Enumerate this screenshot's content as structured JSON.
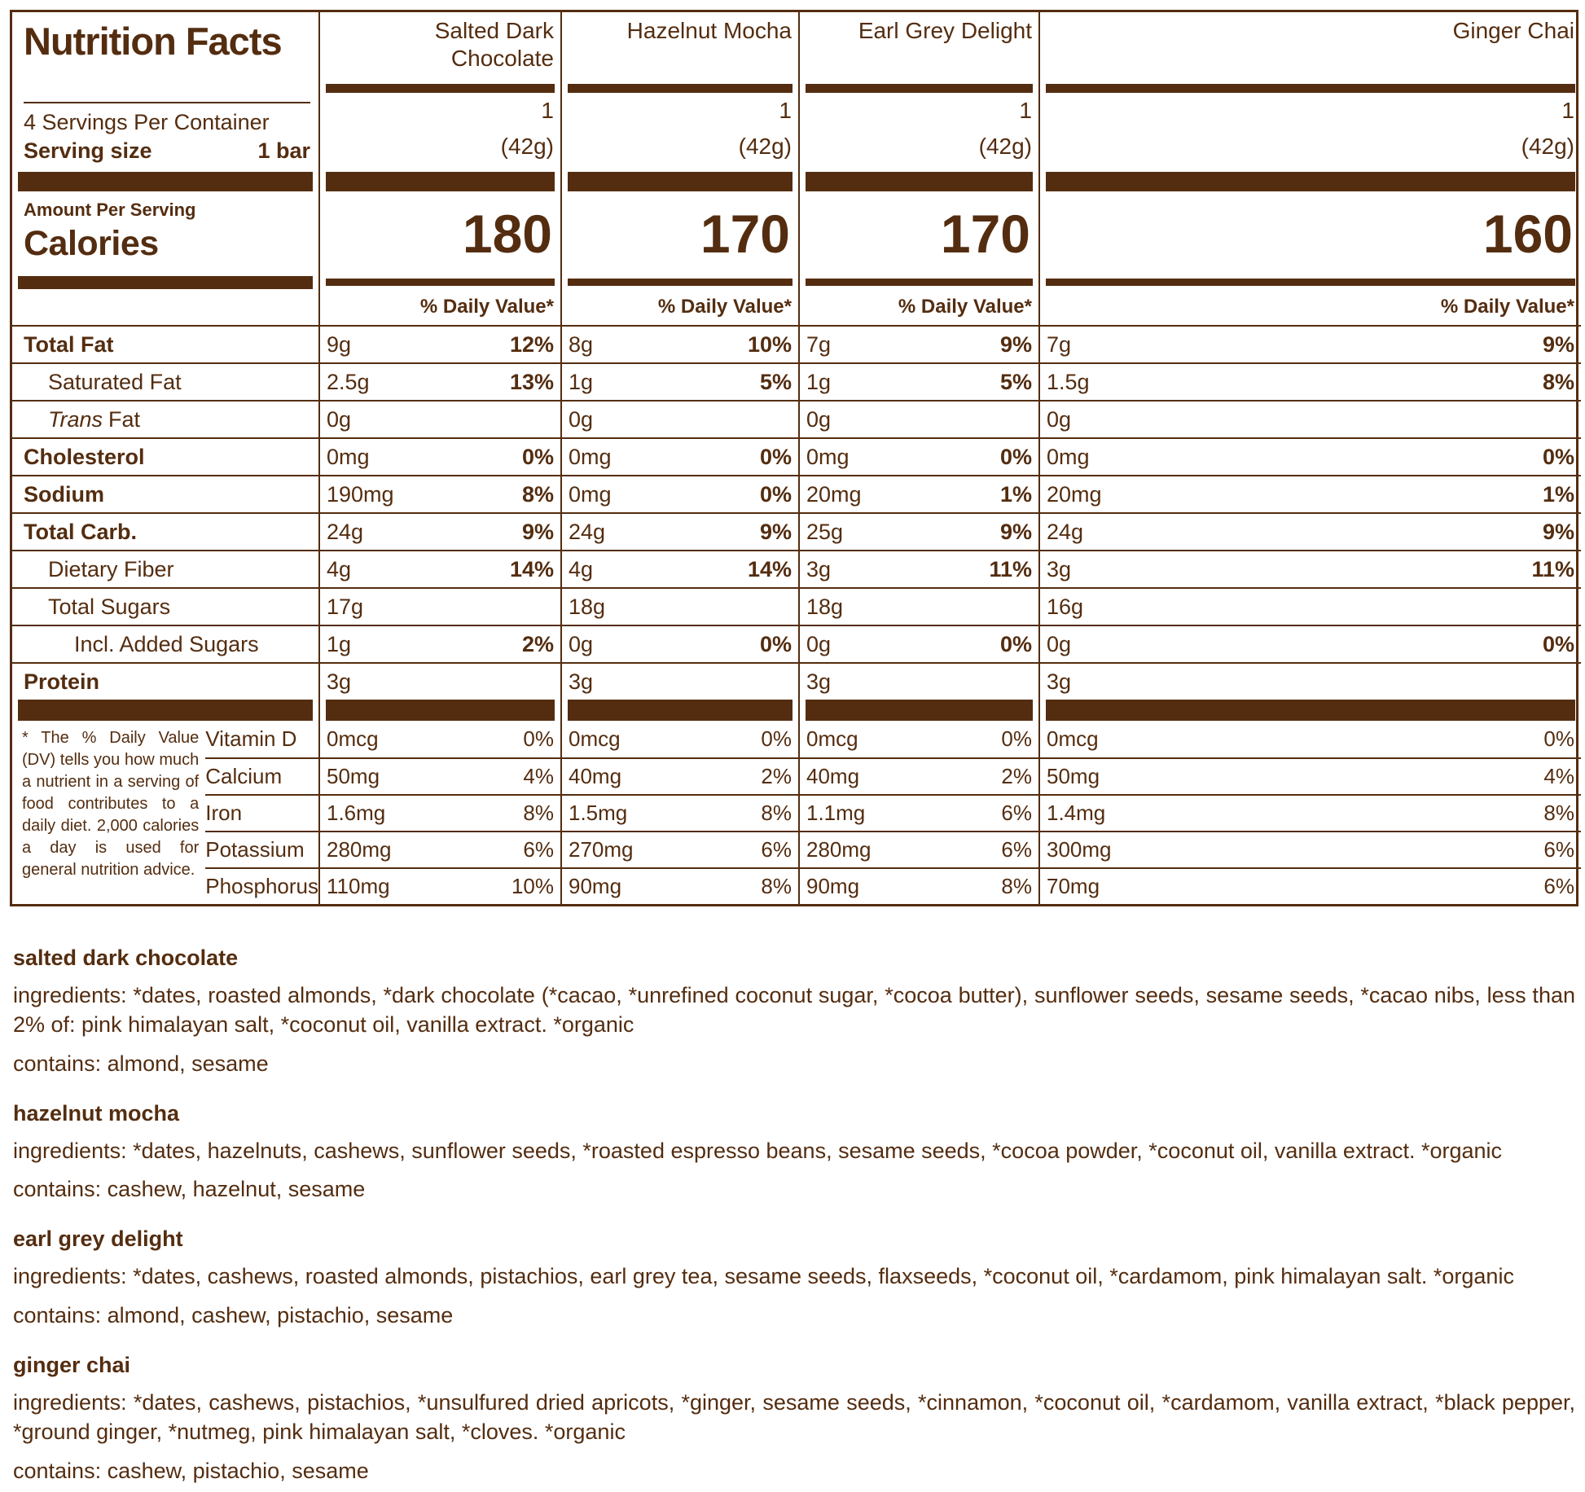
{
  "colors": {
    "brown": "#542d10",
    "background": "#ffffff"
  },
  "header": {
    "title": "Nutrition Facts",
    "servings_per_container": "4 Servings Per Container",
    "serving_size_label": "Serving size",
    "serving_size_value": "1 bar",
    "amount_per_serving": "Amount Per Serving",
    "calories_label": "Calories",
    "daily_value_header": "% Daily Value*"
  },
  "products": [
    {
      "name": "Salted Dark Chocolate",
      "servings": "1",
      "serving_weight": "(42g)",
      "calories": "180"
    },
    {
      "name": "Hazelnut Mocha",
      "servings": "1",
      "serving_weight": "(42g)",
      "calories": "170"
    },
    {
      "name": "Earl Grey Delight",
      "servings": "1",
      "serving_weight": "(42g)",
      "calories": "170"
    },
    {
      "name": "Ginger Chai",
      "servings": "1",
      "serving_weight": "(42g)",
      "calories": "160"
    }
  ],
  "nutrients": [
    {
      "label": "Total Fat",
      "values": [
        {
          "a": "9g",
          "d": "12%"
        },
        {
          "a": "8g",
          "d": "10%"
        },
        {
          "a": "7g",
          "d": "9%"
        },
        {
          "a": "7g",
          "d": "9%"
        }
      ]
    },
    {
      "label": "Saturated Fat",
      "values": [
        {
          "a": "2.5g",
          "d": "13%"
        },
        {
          "a": "1g",
          "d": "5%"
        },
        {
          "a": "1g",
          "d": "5%"
        },
        {
          "a": "1.5g",
          "d": "8%"
        }
      ]
    },
    {
      "label_italic": "Trans",
      "label": "Fat",
      "values": [
        {
          "a": "0g",
          "d": ""
        },
        {
          "a": "0g",
          "d": ""
        },
        {
          "a": "0g",
          "d": ""
        },
        {
          "a": "0g",
          "d": ""
        }
      ]
    },
    {
      "label": "Cholesterol",
      "values": [
        {
          "a": "0mg",
          "d": "0%"
        },
        {
          "a": "0mg",
          "d": "0%"
        },
        {
          "a": "0mg",
          "d": "0%"
        },
        {
          "a": "0mg",
          "d": "0%"
        }
      ]
    },
    {
      "label": "Sodium",
      "values": [
        {
          "a": "190mg",
          "d": "8%"
        },
        {
          "a": "0mg",
          "d": "0%"
        },
        {
          "a": "20mg",
          "d": "1%"
        },
        {
          "a": "20mg",
          "d": "1%"
        }
      ]
    },
    {
      "label": "Total Carb.",
      "values": [
        {
          "a": "24g",
          "d": "9%"
        },
        {
          "a": "24g",
          "d": "9%"
        },
        {
          "a": "25g",
          "d": "9%"
        },
        {
          "a": "24g",
          "d": "9%"
        }
      ]
    },
    {
      "label": "Dietary Fiber",
      "values": [
        {
          "a": "4g",
          "d": "14%"
        },
        {
          "a": "4g",
          "d": "14%"
        },
        {
          "a": "3g",
          "d": "11%"
        },
        {
          "a": "3g",
          "d": "11%"
        }
      ]
    },
    {
      "label": "Total Sugars",
      "values": [
        {
          "a": "17g",
          "d": ""
        },
        {
          "a": "18g",
          "d": ""
        },
        {
          "a": "18g",
          "d": ""
        },
        {
          "a": "16g",
          "d": ""
        }
      ]
    },
    {
      "label": "Incl. Added Sugars",
      "values": [
        {
          "a": "1g",
          "d": "2%"
        },
        {
          "a": "0g",
          "d": "0%"
        },
        {
          "a": "0g",
          "d": "0%"
        },
        {
          "a": "0g",
          "d": "0%"
        }
      ]
    },
    {
      "label": "Protein",
      "values": [
        {
          "a": "3g",
          "d": ""
        },
        {
          "a": "3g",
          "d": ""
        },
        {
          "a": "3g",
          "d": ""
        },
        {
          "a": "3g",
          "d": ""
        }
      ]
    }
  ],
  "footnote": "* The % Daily Value (DV) tells you how much a nutrient in a serving of food contributes to a daily diet. 2,000 calories a day is used for general nutrition advice.",
  "micronutrients": [
    {
      "label": "Vitamin D",
      "values": [
        {
          "a": "0mcg",
          "d": "0%"
        },
        {
          "a": "0mcg",
          "d": "0%"
        },
        {
          "a": "0mcg",
          "d": "0%"
        },
        {
          "a": "0mcg",
          "d": "0%"
        }
      ]
    },
    {
      "label": "Calcium",
      "values": [
        {
          "a": "50mg",
          "d": "4%"
        },
        {
          "a": "40mg",
          "d": "2%"
        },
        {
          "a": "40mg",
          "d": "2%"
        },
        {
          "a": "50mg",
          "d": "4%"
        }
      ]
    },
    {
      "label": "Iron",
      "values": [
        {
          "a": "1.6mg",
          "d": "8%"
        },
        {
          "a": "1.5mg",
          "d": "8%"
        },
        {
          "a": "1.1mg",
          "d": "6%"
        },
        {
          "a": "1.4mg",
          "d": "8%"
        }
      ]
    },
    {
      "label": "Potassium",
      "values": [
        {
          "a": "280mg",
          "d": "6%"
        },
        {
          "a": "270mg",
          "d": "6%"
        },
        {
          "a": "280mg",
          "d": "6%"
        },
        {
          "a": "300mg",
          "d": "6%"
        }
      ]
    },
    {
      "label": "Phosphorus",
      "values": [
        {
          "a": "110mg",
          "d": "10%"
        },
        {
          "a": "90mg",
          "d": "8%"
        },
        {
          "a": "90mg",
          "d": "8%"
        },
        {
          "a": "70mg",
          "d": "6%"
        }
      ]
    }
  ],
  "ingredient_sections": [
    {
      "heading": "salted dark chocolate",
      "ingredients": "ingredients: *dates, roasted almonds, *dark chocolate (*cacao, *unrefined coconut sugar, *cocoa butter), sunflower seeds, sesame seeds, *cacao nibs, less than 2% of: pink himalayan salt, *coconut oil, vanilla extract. *organic",
      "contains": "contains: almond, sesame"
    },
    {
      "heading": "hazelnut mocha",
      "ingredients": "ingredients: *dates, hazelnuts, cashews, sunflower seeds, *roasted espresso beans, sesame seeds, *cocoa powder, *coconut oil, vanilla extract. *organic",
      "contains": "contains: cashew, hazelnut, sesame"
    },
    {
      "heading": "earl grey delight",
      "ingredients": "ingredients: *dates, cashews, roasted almonds, pistachios, earl grey tea, sesame seeds, flaxseeds, *coconut oil, *cardamom, pink himalayan salt. *organic",
      "contains": "contains: almond, cashew, pistachio, sesame"
    },
    {
      "heading": "ginger chai",
      "ingredients": "ingredients: *dates, cashews, pistachios, *unsulfured dried apricots, *ginger, sesame seeds, *cinnamon, *coconut oil, *cardamom, vanilla extract, *black pepper, *ground ginger, *nutmeg, pink himalayan salt, *cloves. *organic",
      "contains": "contains: cashew, pistachio, sesame"
    }
  ]
}
